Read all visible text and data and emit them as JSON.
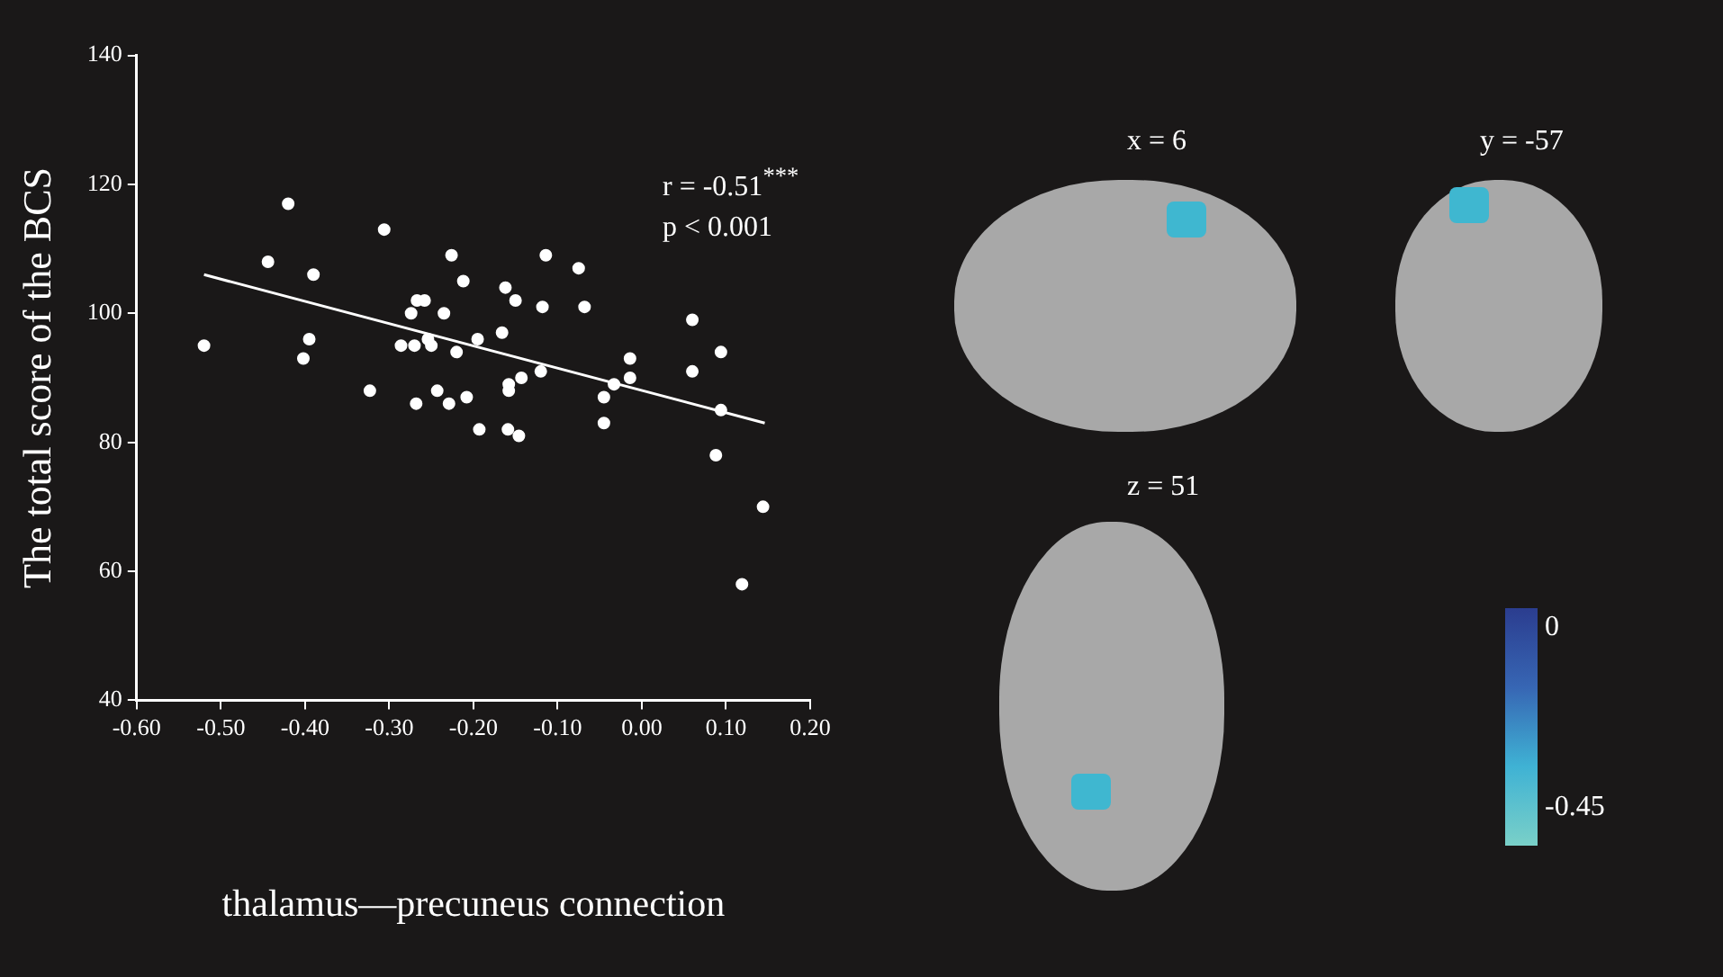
{
  "chart_data": {
    "type": "scatter",
    "ylabel": "The total score of the BCS",
    "xlabel": "thalamus—precuneus connection",
    "annotations": [
      "r = -0.51$^{***}$",
      "p < 0.001",
      "x = 6",
      "y = -57",
      "z = 51",
      "0",
      "-0.45"
    ],
    "x": [
      -0.52,
      -0.444,
      -0.42,
      -0.402,
      -0.395,
      -0.39,
      -0.323,
      -0.306,
      -0.286,
      -0.274,
      -0.27,
      -0.268,
      -0.267,
      -0.258,
      -0.254,
      -0.25,
      -0.243,
      -0.235,
      -0.229,
      -0.226,
      -0.22,
      -0.212,
      -0.208,
      -0.195,
      -0.193,
      -0.166,
      -0.162,
      -0.159,
      -0.158,
      -0.158,
      -0.15,
      -0.146,
      -0.143,
      -0.12,
      -0.118,
      -0.114,
      -0.075,
      -0.068,
      -0.045,
      -0.045,
      -0.033,
      -0.014,
      -0.014,
      0.06,
      0.06,
      0.088,
      0.094,
      0.094,
      0.119,
      0.144
    ],
    "series": [
      {
        "color": "#ffffff",
        "marker": "circle",
        "values": [
          95,
          108,
          117,
          93,
          96,
          106,
          88,
          113,
          95,
          100,
          95,
          86,
          102,
          102,
          96,
          95,
          88,
          100,
          86,
          109,
          94,
          105,
          87,
          96,
          82,
          97,
          104,
          82,
          89,
          88,
          102,
          81,
          90,
          91,
          101,
          109,
          107,
          101,
          87,
          83,
          89,
          93,
          90,
          99,
          91,
          78,
          94,
          85,
          58,
          70
        ]
      },
      {
        "type": "line",
        "color": "#ffffff",
        "marker": "none",
        "x": [
          -0.52,
          0.146
        ],
        "values": [
          106,
          83
        ]
      }
    ],
    "xlim": [
      -0.6,
      0.2
    ],
    "xticks": [
      {
        "value": -0.6,
        "label": "-0.60"
      },
      {
        "value": -0.5,
        "label": "-0.50"
      },
      {
        "value": -0.4,
        "label": "-0.40"
      },
      {
        "value": -0.3,
        "label": "-0.30"
      },
      {
        "value": -0.2,
        "label": "-0.20"
      },
      {
        "value": -0.1,
        "label": "-0.10"
      },
      {
        "value": 0,
        "label": "0.00"
      },
      {
        "value": 0.1,
        "label": "0.10"
      },
      {
        "value": 0.2,
        "label": "0.20"
      }
    ],
    "ylim": [
      40,
      140
    ],
    "yticks": [
      40,
      60,
      80,
      100,
      120,
      140
    ],
    "grid": false,
    "legend": false
  }
}
